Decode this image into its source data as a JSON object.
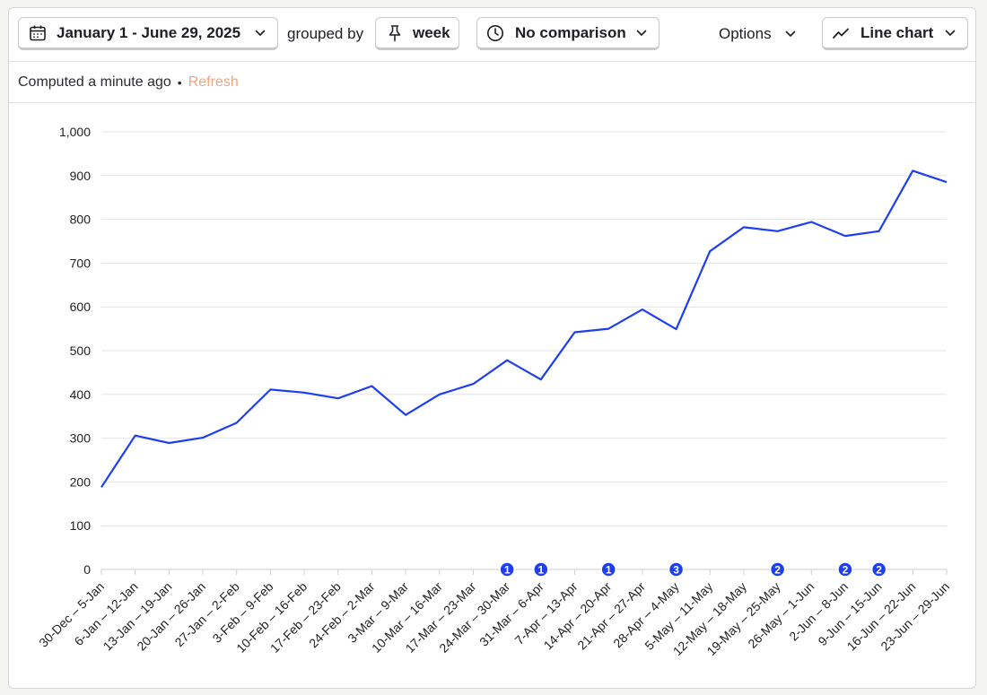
{
  "toolbar": {
    "date_range_label": "January 1 - June 29, 2025",
    "grouped_by_label": "grouped by",
    "interval_label": "week",
    "comparison_label": "No comparison",
    "options_label": "Options",
    "chart_type_label": "Line chart",
    "icons": {
      "date": "calendar-icon",
      "interval": "pin-icon",
      "comparison": "clock-icon",
      "chart_type": "line-chart-icon",
      "dropdown": "chevron-down-icon"
    }
  },
  "status": {
    "computed_text": "Computed a minute ago",
    "separator": "•",
    "refresh_label": "Refresh"
  },
  "colors": {
    "series_line": "#1e3ff0",
    "annotation_badge": "#1e3ff0",
    "refresh_link": "#f0a383",
    "grid": "#e4e4e4"
  },
  "chart_data": {
    "type": "line",
    "title": "",
    "xlabel": "",
    "ylabel": "",
    "ylim": [
      0,
      1000
    ],
    "yticks": [
      0,
      100,
      200,
      300,
      400,
      500,
      600,
      700,
      800,
      900,
      1000
    ],
    "ytick_labels": [
      "0",
      "100",
      "200",
      "300",
      "400",
      "500",
      "600",
      "700",
      "800",
      "900",
      "1,000"
    ],
    "grid": true,
    "legend": "none",
    "categories": [
      "30-Dec – 5-Jan",
      "6-Jan – 12-Jan",
      "13-Jan – 19-Jan",
      "20-Jan – 26-Jan",
      "27-Jan – 2-Feb",
      "3-Feb – 9-Feb",
      "10-Feb – 16-Feb",
      "17-Feb – 23-Feb",
      "24-Feb – 2-Mar",
      "3-Mar – 9-Mar",
      "10-Mar – 16-Mar",
      "17-Mar – 23-Mar",
      "24-Mar – 30-Mar",
      "31-Mar – 6-Apr",
      "7-Apr – 13-Apr",
      "14-Apr – 20-Apr",
      "21-Apr – 27-Apr",
      "28-Apr – 4-May",
      "5-May – 11-May",
      "12-May – 18-May",
      "19-May – 25-May",
      "26-May – 1-Jun",
      "2-Jun – 8-Jun",
      "9-Jun – 15-Jun",
      "16-Jun – 22-Jun",
      "23-Jun – 29-Jun"
    ],
    "series": [
      {
        "values": [
          188,
          306,
          289,
          301,
          335,
          411,
          404,
          391,
          419,
          353,
          400,
          424,
          478,
          434,
          542,
          550,
          594,
          549,
          727,
          782,
          773,
          794,
          762,
          773,
          911,
          885
        ]
      }
    ],
    "annotations": [
      {
        "category": "24-Mar – 30-Mar",
        "count": "1"
      },
      {
        "category": "31-Mar – 6-Apr",
        "count": "1"
      },
      {
        "category": "14-Apr – 20-Apr",
        "count": "1"
      },
      {
        "category": "28-Apr – 4-May",
        "count": "3"
      },
      {
        "category": "19-May – 25-May",
        "count": "2"
      },
      {
        "category": "2-Jun – 8-Jun",
        "count": "2"
      },
      {
        "category": "9-Jun – 15-Jun",
        "count": "2"
      }
    ]
  }
}
